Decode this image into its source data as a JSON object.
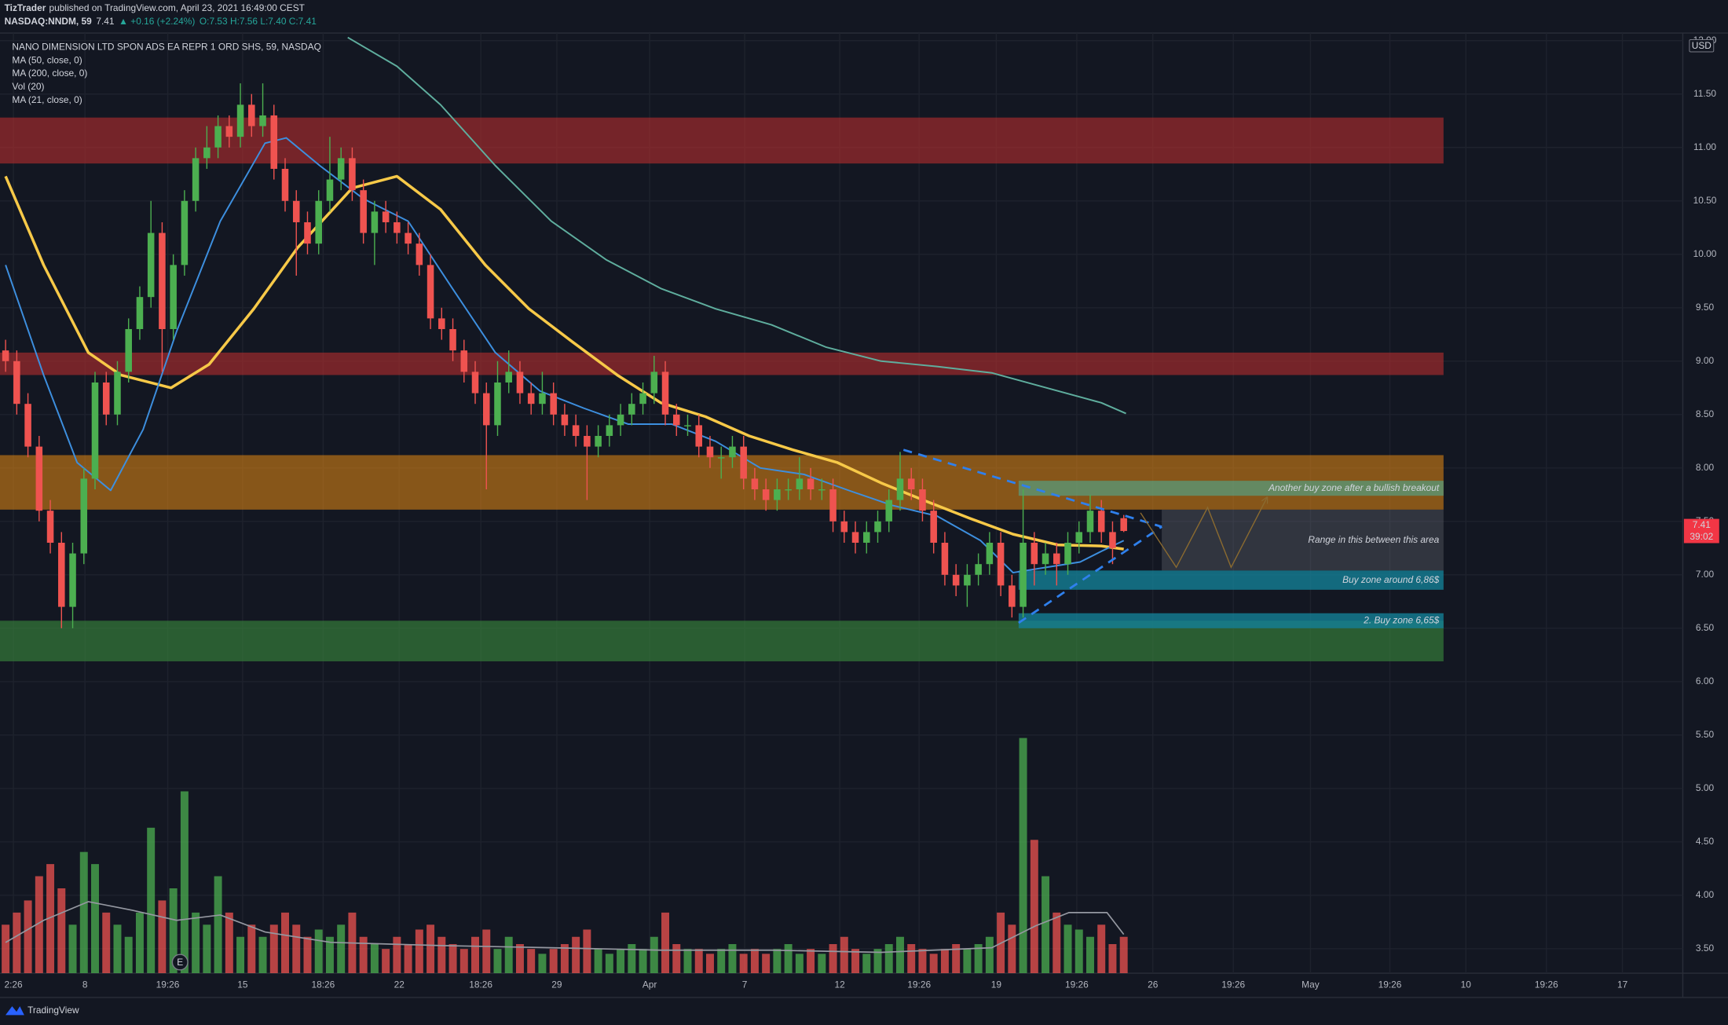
{
  "header": {
    "author": "TizTrader",
    "published": "published on TradingView.com, April 23, 2021 16:49:00 CEST",
    "symbol": "NASDAQ:NNDM, 59",
    "price": "7.41",
    "change": "▲ +0.16 (+2.24%)",
    "ohlc": "O:7.53 H:7.56 L:7.40 C:7.41"
  },
  "footer": {
    "brand": "TradingView"
  },
  "chart_data": {
    "type": "candlestick",
    "title": "NANO DIMENSION LTD SPON ADS EA REPR 1 ORD SHS, 59, NASDAQ",
    "currency": "USD",
    "up_color": "#4caf50",
    "down_color": "#ef5350",
    "xlim": [
      -0.5,
      150
    ],
    "xticks": [
      {
        "value": 0.7,
        "label": "2:26"
      },
      {
        "value": 7.1,
        "label": "8"
      },
      {
        "value": 14.5,
        "label": "19:26"
      },
      {
        "value": 21.2,
        "label": "15"
      },
      {
        "value": 28.4,
        "label": "18:26"
      },
      {
        "value": 35.2,
        "label": "22"
      },
      {
        "value": 42.5,
        "label": "18:26"
      },
      {
        "value": 49.3,
        "label": "29"
      },
      {
        "value": 57.6,
        "label": "Apr"
      },
      {
        "value": 66.1,
        "label": "7"
      },
      {
        "value": 74.6,
        "label": "12"
      },
      {
        "value": 81.7,
        "label": "19:26"
      },
      {
        "value": 88.6,
        "label": "19"
      },
      {
        "value": 95.8,
        "label": "19:26"
      },
      {
        "value": 102.6,
        "label": "26"
      },
      {
        "value": 109.8,
        "label": "19:26"
      },
      {
        "value": 116.7,
        "label": "May"
      },
      {
        "value": 123.8,
        "label": "19:26"
      },
      {
        "value": 130.6,
        "label": "10"
      },
      {
        "value": 137.8,
        "label": "19:26"
      },
      {
        "value": 144.6,
        "label": "17"
      }
    ],
    "ylim": [
      3.25,
      12.04
    ],
    "yticks": [
      {
        "value": 3.5,
        "label": "3.50"
      },
      {
        "value": 4,
        "label": "4.00"
      },
      {
        "value": 4.5,
        "label": "4.50"
      },
      {
        "value": 5,
        "label": "5.00"
      },
      {
        "value": 5.5,
        "label": "5.50"
      },
      {
        "value": 6,
        "label": "6.00"
      },
      {
        "value": 6.5,
        "label": "6.50"
      },
      {
        "value": 7,
        "label": "7.00"
      },
      {
        "value": 7.5,
        "label": "7.50"
      },
      {
        "value": 8,
        "label": "8.00"
      },
      {
        "value": 8.5,
        "label": "8.50"
      },
      {
        "value": 9,
        "label": "9.00"
      },
      {
        "value": 9.5,
        "label": "9.50"
      },
      {
        "value": 10,
        "label": "10.00"
      },
      {
        "value": 10.5,
        "label": "10.50"
      },
      {
        "value": 11,
        "label": "11.00"
      },
      {
        "value": 11.5,
        "label": "11.50"
      },
      {
        "value": 12,
        "label": "12.00"
      }
    ],
    "grid": true,
    "open": [
      9.1,
      9.0,
      8.6,
      8.2,
      7.6,
      7.3,
      6.7,
      7.2,
      7.9,
      8.8,
      8.5,
      8.9,
      9.3,
      9.6,
      10.2,
      9.3,
      9.9,
      10.5,
      10.9,
      11.0,
      11.2,
      11.1,
      11.4,
      11.2,
      11.3,
      10.8,
      10.5,
      10.3,
      10.1,
      10.5,
      10.7,
      10.9,
      10.6,
      10.2,
      10.4,
      10.3,
      10.2,
      10.1,
      9.9,
      9.4,
      9.3,
      9.1,
      8.9,
      8.7,
      8.4,
      8.8,
      8.9,
      8.7,
      8.6,
      8.7,
      8.5,
      8.4,
      8.3,
      8.2,
      8.3,
      8.4,
      8.5,
      8.6,
      8.7,
      8.9,
      8.5,
      8.4,
      8.4,
      8.2,
      8.1,
      8.1,
      8.2,
      7.9,
      7.8,
      7.7,
      7.8,
      7.8,
      7.9,
      7.8,
      7.8,
      7.5,
      7.4,
      7.3,
      7.4,
      7.5,
      7.7,
      7.9,
      7.8,
      7.6,
      7.3,
      7.0,
      6.9,
      7.0,
      7.1,
      7.3,
      6.9,
      6.7,
      7.3,
      7.1,
      7.2,
      7.1,
      7.3,
      7.4,
      7.6,
      7.4,
      7.53
    ],
    "high": [
      9.2,
      9.1,
      8.7,
      8.3,
      7.7,
      7.4,
      7.3,
      8.0,
      8.9,
      8.9,
      9.0,
      9.4,
      9.7,
      10.5,
      10.3,
      10.0,
      10.6,
      11.0,
      11.2,
      11.3,
      11.3,
      11.6,
      11.5,
      11.6,
      11.4,
      10.9,
      10.6,
      10.4,
      10.6,
      11.1,
      11.0,
      11.0,
      10.7,
      10.5,
      10.5,
      10.4,
      10.3,
      10.2,
      10.0,
      9.5,
      9.4,
      9.2,
      9.0,
      8.8,
      9.0,
      9.1,
      9.0,
      8.8,
      8.9,
      8.8,
      8.6,
      8.5,
      8.4,
      8.4,
      8.5,
      8.6,
      8.7,
      8.8,
      9.05,
      9.0,
      8.6,
      8.5,
      8.5,
      8.3,
      8.2,
      8.3,
      8.3,
      8.0,
      7.9,
      7.9,
      7.9,
      8.1,
      8.0,
      7.9,
      7.9,
      7.6,
      7.5,
      7.5,
      7.6,
      7.8,
      8.15,
      8.0,
      7.9,
      7.7,
      7.4,
      7.1,
      7.1,
      7.2,
      7.4,
      7.4,
      7.0,
      7.8,
      7.4,
      7.3,
      7.3,
      7.4,
      7.5,
      7.75,
      7.7,
      7.5,
      7.56
    ],
    "low": [
      8.9,
      8.5,
      8.1,
      7.5,
      7.2,
      6.5,
      6.5,
      7.1,
      7.8,
      8.4,
      8.4,
      8.8,
      9.2,
      9.5,
      8.9,
      9.2,
      9.8,
      10.4,
      10.8,
      10.9,
      11.0,
      11.0,
      11.1,
      11.1,
      10.7,
      10.4,
      9.8,
      10.0,
      10.0,
      10.4,
      10.6,
      10.5,
      10.1,
      9.9,
      10.2,
      10.1,
      10.0,
      9.8,
      9.3,
      9.2,
      9.0,
      8.8,
      8.6,
      7.8,
      8.3,
      8.7,
      8.6,
      8.5,
      8.5,
      8.4,
      8.3,
      8.2,
      7.7,
      8.1,
      8.2,
      8.3,
      8.4,
      8.5,
      8.6,
      8.4,
      8.3,
      8.3,
      8.1,
      8.0,
      7.9,
      8.0,
      7.8,
      7.7,
      7.6,
      7.6,
      7.7,
      7.7,
      7.7,
      7.7,
      7.4,
      7.3,
      7.2,
      7.2,
      7.3,
      7.4,
      7.6,
      7.7,
      7.5,
      7.2,
      6.9,
      6.8,
      6.7,
      6.9,
      7.0,
      6.8,
      6.6,
      6.6,
      6.9,
      7.0,
      6.9,
      7.0,
      7.2,
      7.3,
      7.3,
      7.1,
      7.4
    ],
    "close": [
      9.0,
      8.6,
      8.2,
      7.6,
      7.3,
      6.7,
      7.2,
      7.9,
      8.8,
      8.5,
      8.9,
      9.3,
      9.6,
      10.2,
      9.3,
      9.9,
      10.5,
      10.9,
      11.0,
      11.2,
      11.1,
      11.4,
      11.2,
      11.3,
      10.8,
      10.5,
      10.3,
      10.1,
      10.5,
      10.7,
      10.9,
      10.6,
      10.2,
      10.4,
      10.3,
      10.2,
      10.1,
      9.9,
      9.4,
      9.3,
      9.1,
      8.9,
      8.7,
      8.4,
      8.8,
      8.9,
      8.7,
      8.6,
      8.7,
      8.5,
      8.4,
      8.3,
      8.2,
      8.3,
      8.4,
      8.5,
      8.6,
      8.7,
      8.9,
      8.5,
      8.4,
      8.4,
      8.2,
      8.1,
      8.1,
      8.2,
      7.9,
      7.8,
      7.7,
      7.8,
      7.8,
      7.9,
      7.8,
      7.8,
      7.5,
      7.4,
      7.3,
      7.4,
      7.5,
      7.7,
      7.9,
      7.8,
      7.6,
      7.3,
      7.0,
      6.9,
      7.0,
      7.1,
      7.3,
      6.9,
      6.7,
      7.3,
      7.1,
      7.2,
      7.1,
      7.3,
      7.4,
      7.6,
      7.4,
      7.25,
      7.41
    ],
    "y2lim": [
      0,
      100
    ],
    "volume": {
      "name": "Vol (20)",
      "values": [
        20,
        25,
        30,
        40,
        45,
        35,
        20,
        50,
        45,
        25,
        20,
        15,
        25,
        60,
        30,
        35,
        75,
        25,
        20,
        40,
        25,
        15,
        20,
        15,
        20,
        25,
        20,
        15,
        18,
        15,
        20,
        25,
        15,
        12,
        10,
        15,
        12,
        18,
        20,
        15,
        12,
        10,
        15,
        18,
        10,
        15,
        12,
        10,
        8,
        10,
        12,
        15,
        18,
        10,
        8,
        10,
        12,
        10,
        15,
        25,
        12,
        10,
        10,
        8,
        10,
        12,
        8,
        10,
        8,
        10,
        12,
        8,
        10,
        8,
        12,
        15,
        10,
        8,
        10,
        12,
        15,
        12,
        10,
        8,
        10,
        12,
        10,
        12,
        15,
        25,
        20,
        97,
        55,
        40,
        25,
        20,
        18,
        15,
        20,
        12,
        15
      ],
      "ma": {
        "color": "#9598a1",
        "x": [
          0,
          3.4,
          7.4,
          11.3,
          15.3,
          19.2,
          23.2,
          29.1,
          38.9,
          48.8,
          58.6,
          68.5,
          78.3,
          88.2,
          92.1,
          95.1,
          98.5,
          100.0
        ],
        "values": [
          12.7,
          21.8,
          29.5,
          26,
          21.8,
          24,
          17,
          12.7,
          11.4,
          10.5,
          9.5,
          9.5,
          8.6,
          10.5,
          19.5,
          25,
          25,
          16
        ]
      }
    },
    "series": [
      {
        "name": "MA (50, close, 0)",
        "color": "#f7c948",
        "width": 2.5,
        "x": [
          0,
          3.4,
          7.4,
          10.3,
          14.8,
          18.2,
          22.2,
          26.1,
          31.0,
          35.0,
          38.9,
          42.9,
          46.8,
          50.7,
          54.7,
          58.6,
          62.6,
          66.5,
          70.4,
          74.4,
          78.3,
          82.3,
          86.2,
          90.1,
          94.1,
          98.0,
          100.0
        ],
        "values": [
          10.73,
          9.9,
          9.08,
          8.87,
          8.75,
          8.97,
          9.49,
          10.06,
          10.62,
          10.73,
          10.42,
          9.9,
          9.49,
          9.18,
          8.87,
          8.61,
          8.48,
          8.3,
          8.17,
          8.05,
          7.86,
          7.69,
          7.53,
          7.38,
          7.28,
          7.27,
          7.24
        ]
      },
      {
        "name": "MA (200, close, 0)",
        "color": "#5fae9e",
        "width": 1.4,
        "x": [
          30.6,
          35.0,
          38.9,
          43.8,
          48.8,
          53.7,
          58.6,
          63.5,
          68.5,
          73.4,
          78.3,
          83.3,
          88.2,
          93.1,
          98.0,
          100.2
        ],
        "values": [
          12.03,
          11.76,
          11.4,
          10.83,
          10.31,
          9.95,
          9.68,
          9.49,
          9.34,
          9.13,
          9.0,
          8.95,
          8.89,
          8.75,
          8.61,
          8.51
        ]
      },
      {
        "name": "MA (21, close, 0)",
        "color": "#3d8fdf",
        "width": 1.4,
        "x": [
          0,
          3.4,
          6.4,
          9.4,
          12.3,
          15.3,
          19.2,
          23.2,
          25.1,
          28.1,
          32.0,
          36.0,
          39.9,
          43.8,
          47.8,
          51.7,
          55.7,
          59.6,
          63.5,
          67.5,
          71.4,
          75.4,
          79.3,
          83.3,
          87.2,
          90.1,
          93.1,
          96.1,
          98.0,
          100.0
        ],
        "values": [
          9.9,
          8.87,
          8.05,
          7.79,
          8.36,
          9.28,
          10.31,
          11.04,
          11.09,
          10.83,
          10.52,
          10.31,
          9.69,
          9.08,
          8.72,
          8.56,
          8.41,
          8.41,
          8.25,
          8.0,
          7.94,
          7.79,
          7.65,
          7.55,
          7.32,
          7.02,
          7.07,
          7.12,
          7.22,
          7.32
        ]
      }
    ],
    "zones": [
      {
        "top": 11.28,
        "bottom": 10.85,
        "x0": -0.5,
        "x1": 128.6,
        "color": "rgba(178,45,45,0.62)"
      },
      {
        "top": 9.08,
        "bottom": 8.87,
        "x0": -0.5,
        "x1": 128.6,
        "color": "rgba(178,45,45,0.62)"
      },
      {
        "top": 8.12,
        "bottom": 7.61,
        "x0": -0.5,
        "x1": 128.6,
        "color": "rgba(214,128,20,0.6)"
      },
      {
        "top": 6.57,
        "bottom": 6.19,
        "x0": -0.5,
        "x1": 128.6,
        "color": "rgba(56,130,60,0.65)"
      },
      {
        "top": 7.88,
        "bottom": 7.74,
        "x0": 90.6,
        "x1": 128.6,
        "color": "rgba(86,160,130,0.7)",
        "label": "Another buy zone after a bullish breakout",
        "label_color": "#ffffff"
      },
      {
        "top": 7.61,
        "bottom": 7.04,
        "x0": 103.4,
        "x1": 128.6,
        "color": "rgba(120,123,134,0.3)",
        "label": "Range in this between this area",
        "label_color": "#a3a6af"
      },
      {
        "top": 7.04,
        "bottom": 6.86,
        "x0": 90.6,
        "x1": 128.6,
        "color": "rgba(20,128,150,0.8)",
        "label": "Buy zone around 6,86$",
        "label_color": "#ffffff"
      },
      {
        "top": 6.64,
        "bottom": 6.5,
        "x0": 90.6,
        "x1": 128.6,
        "color": "rgba(20,128,150,0.8)",
        "label": "2. Buy zone 6,65$",
        "label_color": "#ffffff"
      }
    ],
    "trendlines": [
      {
        "color": "#2f80ed",
        "dashed": true,
        "points": [
          [
            80.3,
            8.17
          ],
          [
            103.4,
            7.45
          ]
        ]
      },
      {
        "color": "#2f80ed",
        "dashed": true,
        "points": [
          [
            90.6,
            6.55
          ],
          [
            103.4,
            7.45
          ]
        ]
      },
      {
        "color": "#8a6a30",
        "dashed": false,
        "arrow": true,
        "points": [
          [
            101.5,
            7.58
          ],
          [
            104.7,
            7.07
          ],
          [
            107.5,
            7.63
          ],
          [
            109.6,
            7.07
          ],
          [
            112.8,
            7.72
          ]
        ]
      }
    ],
    "earnings": {
      "x": 15.6,
      "label": "E"
    },
    "last_price": 7.41,
    "countdown": "39:02"
  }
}
